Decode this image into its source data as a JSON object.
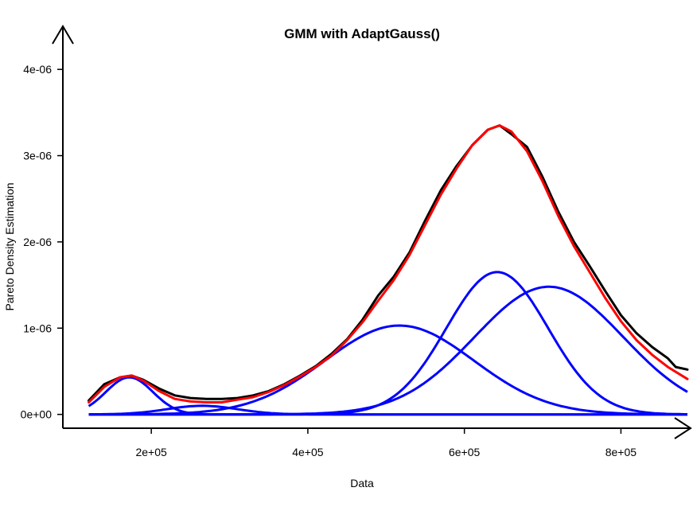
{
  "chart_data": {
    "type": "line",
    "title": "GMM with AdaptGauss()",
    "xlabel": "Data",
    "ylabel": "Pareto Density Estimation",
    "xlim": [
      87000,
      887000
    ],
    "ylim": [
      -1.6e-07,
      4.5e-06
    ],
    "x_ticks": [
      {
        "value": 200000,
        "label": "2e+05"
      },
      {
        "value": 400000,
        "label": "4e+05"
      },
      {
        "value": 600000,
        "label": "6e+05"
      },
      {
        "value": 800000,
        "label": "8e+05"
      }
    ],
    "y_ticks": [
      {
        "value": 0,
        "label": "0e+00"
      },
      {
        "value": 1e-06,
        "label": "1e-06"
      },
      {
        "value": 2e-06,
        "label": "2e-06"
      },
      {
        "value": 3e-06,
        "label": "3e-06"
      },
      {
        "value": 4e-06,
        "label": "4e-06"
      }
    ],
    "grid": false,
    "x_range": [
      120000,
      885000
    ],
    "components": [
      {
        "mean": 172000,
        "sd": 30000,
        "peak": 4.3e-07
      },
      {
        "mean": 265000,
        "sd": 45000,
        "peak": 1e-07
      },
      {
        "mean": 517000,
        "sd": 95000,
        "peak": 1.03e-06
      },
      {
        "mean": 642000,
        "sd": 65000,
        "peak": 1.65e-06
      },
      {
        "mean": 708000,
        "sd": 95000,
        "peak": 1.48e-06
      }
    ],
    "series": [
      {
        "role": "empirical",
        "color": "#000000",
        "x": [
          120000,
          140000,
          160000,
          175000,
          190000,
          210000,
          230000,
          250000,
          270000,
          290000,
          310000,
          330000,
          350000,
          370000,
          390000,
          410000,
          430000,
          450000,
          470000,
          490000,
          510000,
          530000,
          550000,
          570000,
          590000,
          610000,
          630000,
          645000,
          660000,
          680000,
          700000,
          720000,
          740000,
          760000,
          780000,
          800000,
          820000,
          840000,
          860000,
          870000,
          885000
        ],
        "y": [
          1.6e-07,
          3.5e-07,
          4.3e-07,
          4.5e-07,
          4e-07,
          3e-07,
          2.2e-07,
          1.9e-07,
          1.8e-07,
          1.8e-07,
          1.9e-07,
          2.2e-07,
          2.7e-07,
          3.5e-07,
          4.5e-07,
          5.6e-07,
          7e-07,
          8.7e-07,
          1.1e-06,
          1.38e-06,
          1.6e-06,
          1.88e-06,
          2.25e-06,
          2.6e-06,
          2.88e-06,
          3.12e-06,
          3.3e-06,
          3.35e-06,
          3.25e-06,
          3.1e-06,
          2.75e-06,
          2.35e-06,
          2e-06,
          1.72e-06,
          1.43e-06,
          1.15e-06,
          9.4e-07,
          7.8e-07,
          6.5e-07,
          5.5e-07,
          5.2e-07
        ]
      },
      {
        "role": "fitted",
        "color": "#ff0000",
        "x": [
          120000,
          140000,
          160000,
          175000,
          190000,
          210000,
          230000,
          250000,
          270000,
          290000,
          310000,
          330000,
          350000,
          370000,
          390000,
          410000,
          430000,
          450000,
          470000,
          490000,
          510000,
          530000,
          550000,
          570000,
          590000,
          610000,
          630000,
          645000,
          660000,
          680000,
          700000,
          720000,
          740000,
          760000,
          780000,
          800000,
          820000,
          840000,
          860000,
          885000
        ],
        "y": [
          1.4e-07,
          3.2e-07,
          4.3e-07,
          4.5e-07,
          3.9e-07,
          2.7e-07,
          1.8e-07,
          1.5e-07,
          1.4e-07,
          1.4e-07,
          1.7e-07,
          2e-07,
          2.6e-07,
          3.4e-07,
          4.4e-07,
          5.5e-07,
          6.8e-07,
          8.6e-07,
          1.07e-06,
          1.32e-06,
          1.56e-06,
          1.85e-06,
          2.2e-06,
          2.55e-06,
          2.85e-06,
          3.12e-06,
          3.3e-06,
          3.35e-06,
          3.28e-06,
          3.05e-06,
          2.7e-06,
          2.3e-06,
          1.95e-06,
          1.65e-06,
          1.35e-06,
          1.08e-06,
          8.6e-07,
          6.9e-07,
          5.5e-07,
          4.1e-07
        ]
      }
    ],
    "component_color": "#0000ff"
  }
}
